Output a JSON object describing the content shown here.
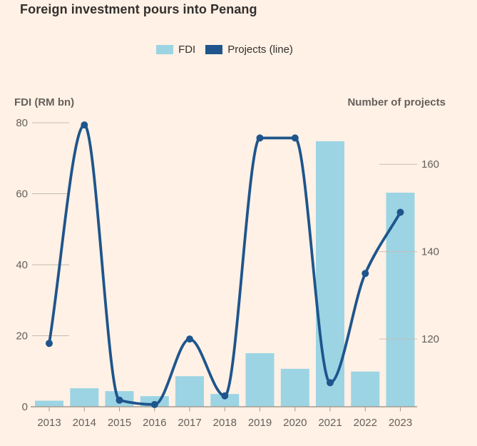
{
  "colors": {
    "background": "#FFF1E5",
    "bar": "#9CD4E4",
    "line": "#1E558C",
    "grid": "#C5BAAF",
    "axis_line": "#A39B92",
    "title_text": "#33302E",
    "muted_text": "#66605C"
  },
  "legend": {
    "fdi_label": "FDI",
    "projects_label": "Projects (line)"
  },
  "chart_data": {
    "type": "bar+line",
    "title": "Foreign investment pours into Penang",
    "categories": [
      "2013",
      "2014",
      "2015",
      "2016",
      "2017",
      "2018",
      "2019",
      "2020",
      "2021",
      "2022",
      "2023"
    ],
    "series": [
      {
        "name": "FDI",
        "type": "bar",
        "axis": "left",
        "values": [
          1.7,
          5.2,
          4.4,
          3.0,
          8.6,
          3.6,
          15.1,
          10.7,
          74.8,
          9.9,
          60.3
        ]
      },
      {
        "name": "Projects (line)",
        "type": "line",
        "axis": "right",
        "values": [
          119,
          169,
          106,
          105,
          120,
          107,
          166,
          166,
          110,
          135,
          149
        ]
      }
    ],
    "left_axis": {
      "label": "FDI (RM bn)",
      "ticks": [
        0,
        20,
        40,
        60,
        80
      ],
      "min": 0,
      "max": 80
    },
    "right_axis": {
      "label": "Number of projects",
      "ticks": [
        120,
        140,
        160
      ],
      "min": 104.5,
      "max": 169.5
    },
    "legend_position": "top-center",
    "grid": "tick-segments"
  }
}
